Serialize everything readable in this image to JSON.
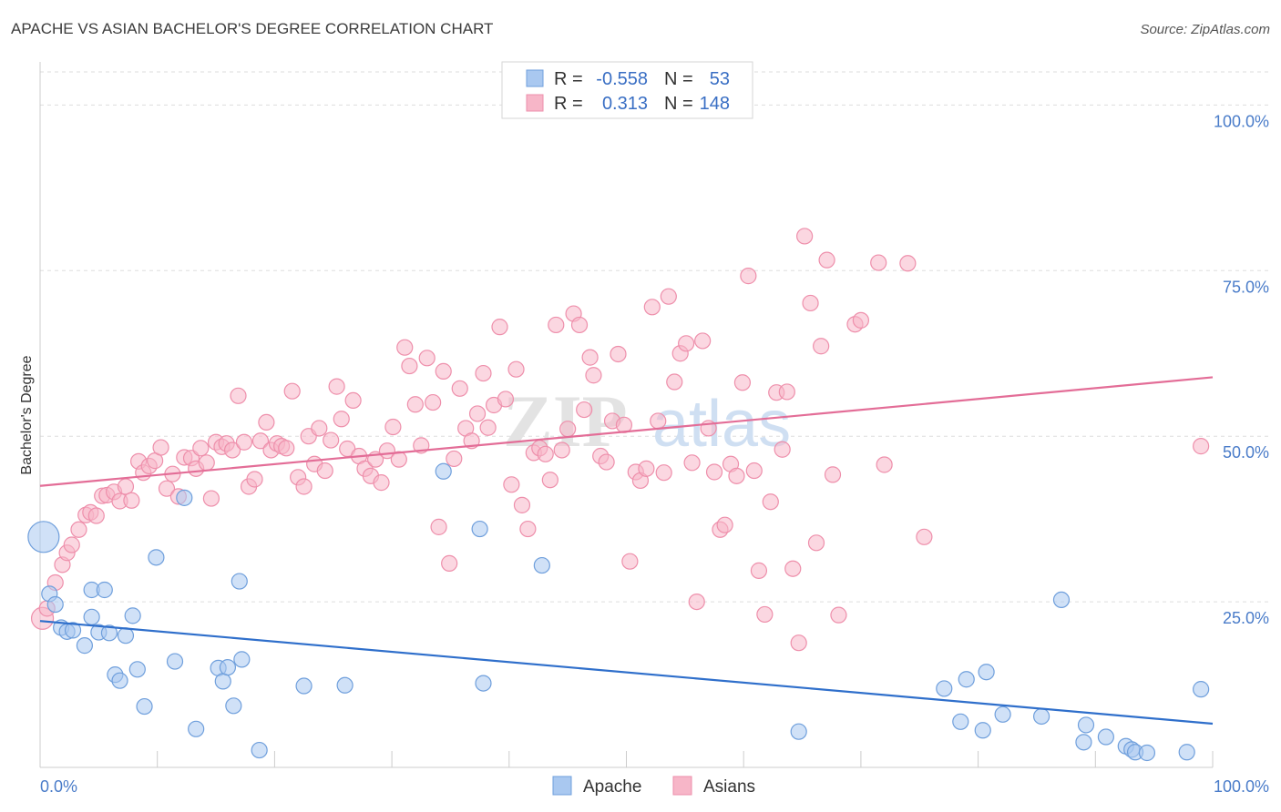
{
  "title": "APACHE VS ASIAN BACHELOR'S DEGREE CORRELATION CHART",
  "source": "Source: ZipAtlas.com",
  "colors": {
    "apache_fill": "#a9c8f0",
    "apache_stroke": "#6f9fdc",
    "apache_line": "#2f6fcb",
    "asians_fill": "#f7b6c8",
    "asians_stroke": "#ee8fab",
    "asians_line": "#e36d97",
    "tick_text": "#4a7cc9",
    "grid": "#dddddd"
  },
  "legend_top": {
    "rows": [
      {
        "series": "Apache",
        "r_label": "R =",
        "r_value": "-0.558",
        "n_label": "N =",
        "n_value": "53"
      },
      {
        "series": "Asians",
        "r_label": "R =",
        "r_value": "0.313",
        "n_label": "N =",
        "n_value": "148"
      }
    ]
  },
  "chart_data": {
    "type": "scatter",
    "xlabel": "",
    "ylabel": "Bachelor's Degree",
    "xlim": [
      0,
      100
    ],
    "ylim": [
      0,
      105
    ],
    "x_tick_labels": [
      "0.0%",
      "100.0%"
    ],
    "y_tick_labels": [
      "25.0%",
      "50.0%",
      "75.0%",
      "100.0%"
    ],
    "y_ticks": [
      25,
      50,
      75,
      100
    ],
    "grid": "horizontal dashed",
    "watermark": "ZIPatlas",
    "series": [
      {
        "name": "Apache",
        "r": -0.558,
        "n": 53,
        "trend": {
          "x": [
            0,
            100
          ],
          "y": [
            22.1,
            6.6
          ]
        },
        "points": [
          [
            0.3,
            34.8,
            "L"
          ],
          [
            0.8,
            26.2
          ],
          [
            1.3,
            24.6
          ],
          [
            1.8,
            21.1
          ],
          [
            2.3,
            20.5
          ],
          [
            2.8,
            20.7
          ],
          [
            3.8,
            18.4
          ],
          [
            4.4,
            26.8
          ],
          [
            4.4,
            22.7
          ],
          [
            5.0,
            20.4
          ],
          [
            5.5,
            26.8
          ],
          [
            5.9,
            20.3
          ],
          [
            6.4,
            14.0
          ],
          [
            6.8,
            13.1
          ],
          [
            7.3,
            19.9
          ],
          [
            7.9,
            22.9
          ],
          [
            8.3,
            14.8
          ],
          [
            8.9,
            9.2
          ],
          [
            9.9,
            31.7
          ],
          [
            11.5,
            16.0
          ],
          [
            12.3,
            40.7
          ],
          [
            13.3,
            5.8
          ],
          [
            15.2,
            15.0
          ],
          [
            15.6,
            13.0
          ],
          [
            16.0,
            15.1
          ],
          [
            16.5,
            9.3
          ],
          [
            17.0,
            28.1
          ],
          [
            17.2,
            16.3
          ],
          [
            18.7,
            2.6
          ],
          [
            22.5,
            12.3
          ],
          [
            26.0,
            12.4
          ],
          [
            34.4,
            44.7
          ],
          [
            37.5,
            36.0
          ],
          [
            37.8,
            12.7
          ],
          [
            42.8,
            30.5
          ],
          [
            64.7,
            5.4
          ],
          [
            77.1,
            11.9
          ],
          [
            78.5,
            6.9
          ],
          [
            79.0,
            13.3
          ],
          [
            80.4,
            5.6
          ],
          [
            80.7,
            14.4
          ],
          [
            82.1,
            8.0
          ],
          [
            85.4,
            7.7
          ],
          [
            87.1,
            25.3
          ],
          [
            89.0,
            3.8
          ],
          [
            89.2,
            6.4
          ],
          [
            90.9,
            4.6
          ],
          [
            92.6,
            3.2
          ],
          [
            93.1,
            2.7
          ],
          [
            93.4,
            2.3
          ],
          [
            94.4,
            2.2
          ],
          [
            97.8,
            2.3
          ],
          [
            99.0,
            11.8
          ]
        ]
      },
      {
        "name": "Asians",
        "r": 0.313,
        "n": 148,
        "trend": {
          "x": [
            0,
            100
          ],
          "y": [
            42.5,
            58.9
          ]
        },
        "points": [
          [
            0.2,
            22.5,
            "M"
          ],
          [
            0.6,
            24.0
          ],
          [
            1.3,
            27.9
          ],
          [
            1.9,
            30.6
          ],
          [
            2.3,
            32.4
          ],
          [
            2.7,
            33.6
          ],
          [
            3.3,
            35.9
          ],
          [
            3.9,
            38.1
          ],
          [
            4.3,
            38.5
          ],
          [
            4.8,
            38.0
          ],
          [
            5.3,
            41.0
          ],
          [
            5.7,
            41.1
          ],
          [
            6.3,
            41.6
          ],
          [
            6.8,
            40.2
          ],
          [
            7.3,
            42.4
          ],
          [
            7.8,
            40.3
          ],
          [
            8.4,
            46.2
          ],
          [
            8.8,
            44.5
          ],
          [
            9.3,
            45.5
          ],
          [
            9.8,
            46.3
          ],
          [
            10.3,
            48.3
          ],
          [
            10.8,
            42.1
          ],
          [
            11.3,
            44.3
          ],
          [
            11.8,
            40.9
          ],
          [
            12.3,
            46.8
          ],
          [
            12.9,
            46.7
          ],
          [
            13.3,
            45.1
          ],
          [
            13.7,
            48.2
          ],
          [
            14.2,
            46.0
          ],
          [
            14.6,
            40.6
          ],
          [
            15.0,
            49.1
          ],
          [
            15.5,
            48.4
          ],
          [
            15.9,
            48.9
          ],
          [
            16.4,
            47.9
          ],
          [
            16.9,
            56.1
          ],
          [
            17.4,
            49.1
          ],
          [
            17.8,
            42.4
          ],
          [
            18.3,
            43.5
          ],
          [
            18.8,
            49.3
          ],
          [
            19.3,
            52.1
          ],
          [
            19.7,
            47.9
          ],
          [
            20.2,
            48.9
          ],
          [
            20.6,
            48.5
          ],
          [
            21.0,
            48.2
          ],
          [
            21.5,
            56.8
          ],
          [
            22.0,
            43.8
          ],
          [
            22.5,
            42.4
          ],
          [
            22.9,
            50.0
          ],
          [
            23.4,
            45.8
          ],
          [
            23.8,
            51.2
          ],
          [
            24.3,
            44.8
          ],
          [
            24.8,
            49.4
          ],
          [
            25.3,
            57.5
          ],
          [
            25.7,
            52.6
          ],
          [
            26.2,
            48.1
          ],
          [
            26.7,
            55.4
          ],
          [
            27.2,
            47.0
          ],
          [
            27.7,
            45.1
          ],
          [
            28.2,
            44.0
          ],
          [
            28.6,
            46.5
          ],
          [
            29.1,
            43.0
          ],
          [
            29.6,
            47.8
          ],
          [
            30.1,
            51.4
          ],
          [
            30.6,
            46.5
          ],
          [
            31.1,
            63.4
          ],
          [
            31.5,
            60.6
          ],
          [
            32.0,
            54.8
          ],
          [
            32.5,
            48.6
          ],
          [
            33.0,
            61.8
          ],
          [
            33.5,
            55.1
          ],
          [
            34.0,
            36.3
          ],
          [
            34.4,
            59.8
          ],
          [
            34.9,
            30.8
          ],
          [
            35.3,
            46.6
          ],
          [
            35.8,
            57.2
          ],
          [
            36.3,
            51.2
          ],
          [
            36.8,
            49.3
          ],
          [
            37.3,
            53.4
          ],
          [
            37.8,
            59.5
          ],
          [
            38.2,
            51.3
          ],
          [
            38.7,
            54.7
          ],
          [
            39.2,
            66.5
          ],
          [
            39.7,
            55.6
          ],
          [
            40.2,
            42.7
          ],
          [
            40.6,
            60.1
          ],
          [
            41.1,
            39.6
          ],
          [
            41.6,
            36.0
          ],
          [
            42.1,
            47.5
          ],
          [
            42.6,
            48.2
          ],
          [
            43.1,
            47.3
          ],
          [
            43.5,
            43.4
          ],
          [
            44.0,
            66.8
          ],
          [
            44.5,
            47.9
          ],
          [
            45.0,
            51.1
          ],
          [
            45.5,
            68.5
          ],
          [
            46.0,
            66.8
          ],
          [
            46.4,
            54.0
          ],
          [
            46.9,
            61.9
          ],
          [
            47.2,
            59.2
          ],
          [
            47.8,
            47.0
          ],
          [
            48.3,
            46.1
          ],
          [
            48.8,
            52.3
          ],
          [
            49.3,
            62.4
          ],
          [
            49.8,
            51.7
          ],
          [
            50.3,
            31.1
          ],
          [
            50.8,
            44.6
          ],
          [
            51.2,
            43.3
          ],
          [
            51.7,
            45.1
          ],
          [
            52.2,
            69.5
          ],
          [
            52.7,
            52.3
          ],
          [
            53.2,
            44.5
          ],
          [
            53.6,
            71.1
          ],
          [
            54.1,
            58.2
          ],
          [
            54.6,
            62.5
          ],
          [
            55.1,
            64.0
          ],
          [
            55.6,
            46.0
          ],
          [
            56.0,
            25.0
          ],
          [
            56.5,
            64.4
          ],
          [
            57.0,
            51.2
          ],
          [
            57.5,
            44.6
          ],
          [
            58.0,
            35.9
          ],
          [
            58.4,
            36.6
          ],
          [
            58.9,
            45.8
          ],
          [
            59.4,
            44.0
          ],
          [
            59.9,
            58.1
          ],
          [
            60.4,
            74.2
          ],
          [
            60.9,
            44.8
          ],
          [
            61.3,
            29.7
          ],
          [
            61.8,
            23.1
          ],
          [
            62.3,
            40.1
          ],
          [
            62.8,
            56.6
          ],
          [
            63.3,
            48.0
          ],
          [
            63.7,
            56.7
          ],
          [
            64.2,
            30.0
          ],
          [
            64.7,
            18.8
          ],
          [
            65.2,
            80.2
          ],
          [
            65.7,
            70.1
          ],
          [
            66.2,
            33.9
          ],
          [
            66.6,
            63.6
          ],
          [
            67.1,
            76.6
          ],
          [
            67.6,
            44.2
          ],
          [
            68.1,
            23.0
          ],
          [
            69.5,
            66.9
          ],
          [
            70.0,
            67.5
          ],
          [
            71.5,
            76.2
          ],
          [
            72.0,
            45.7
          ],
          [
            74.0,
            76.1
          ],
          [
            75.4,
            34.8
          ],
          [
            99.0,
            48.5
          ]
        ]
      }
    ]
  },
  "legend_bottom": [
    "Apache",
    "Asians"
  ]
}
